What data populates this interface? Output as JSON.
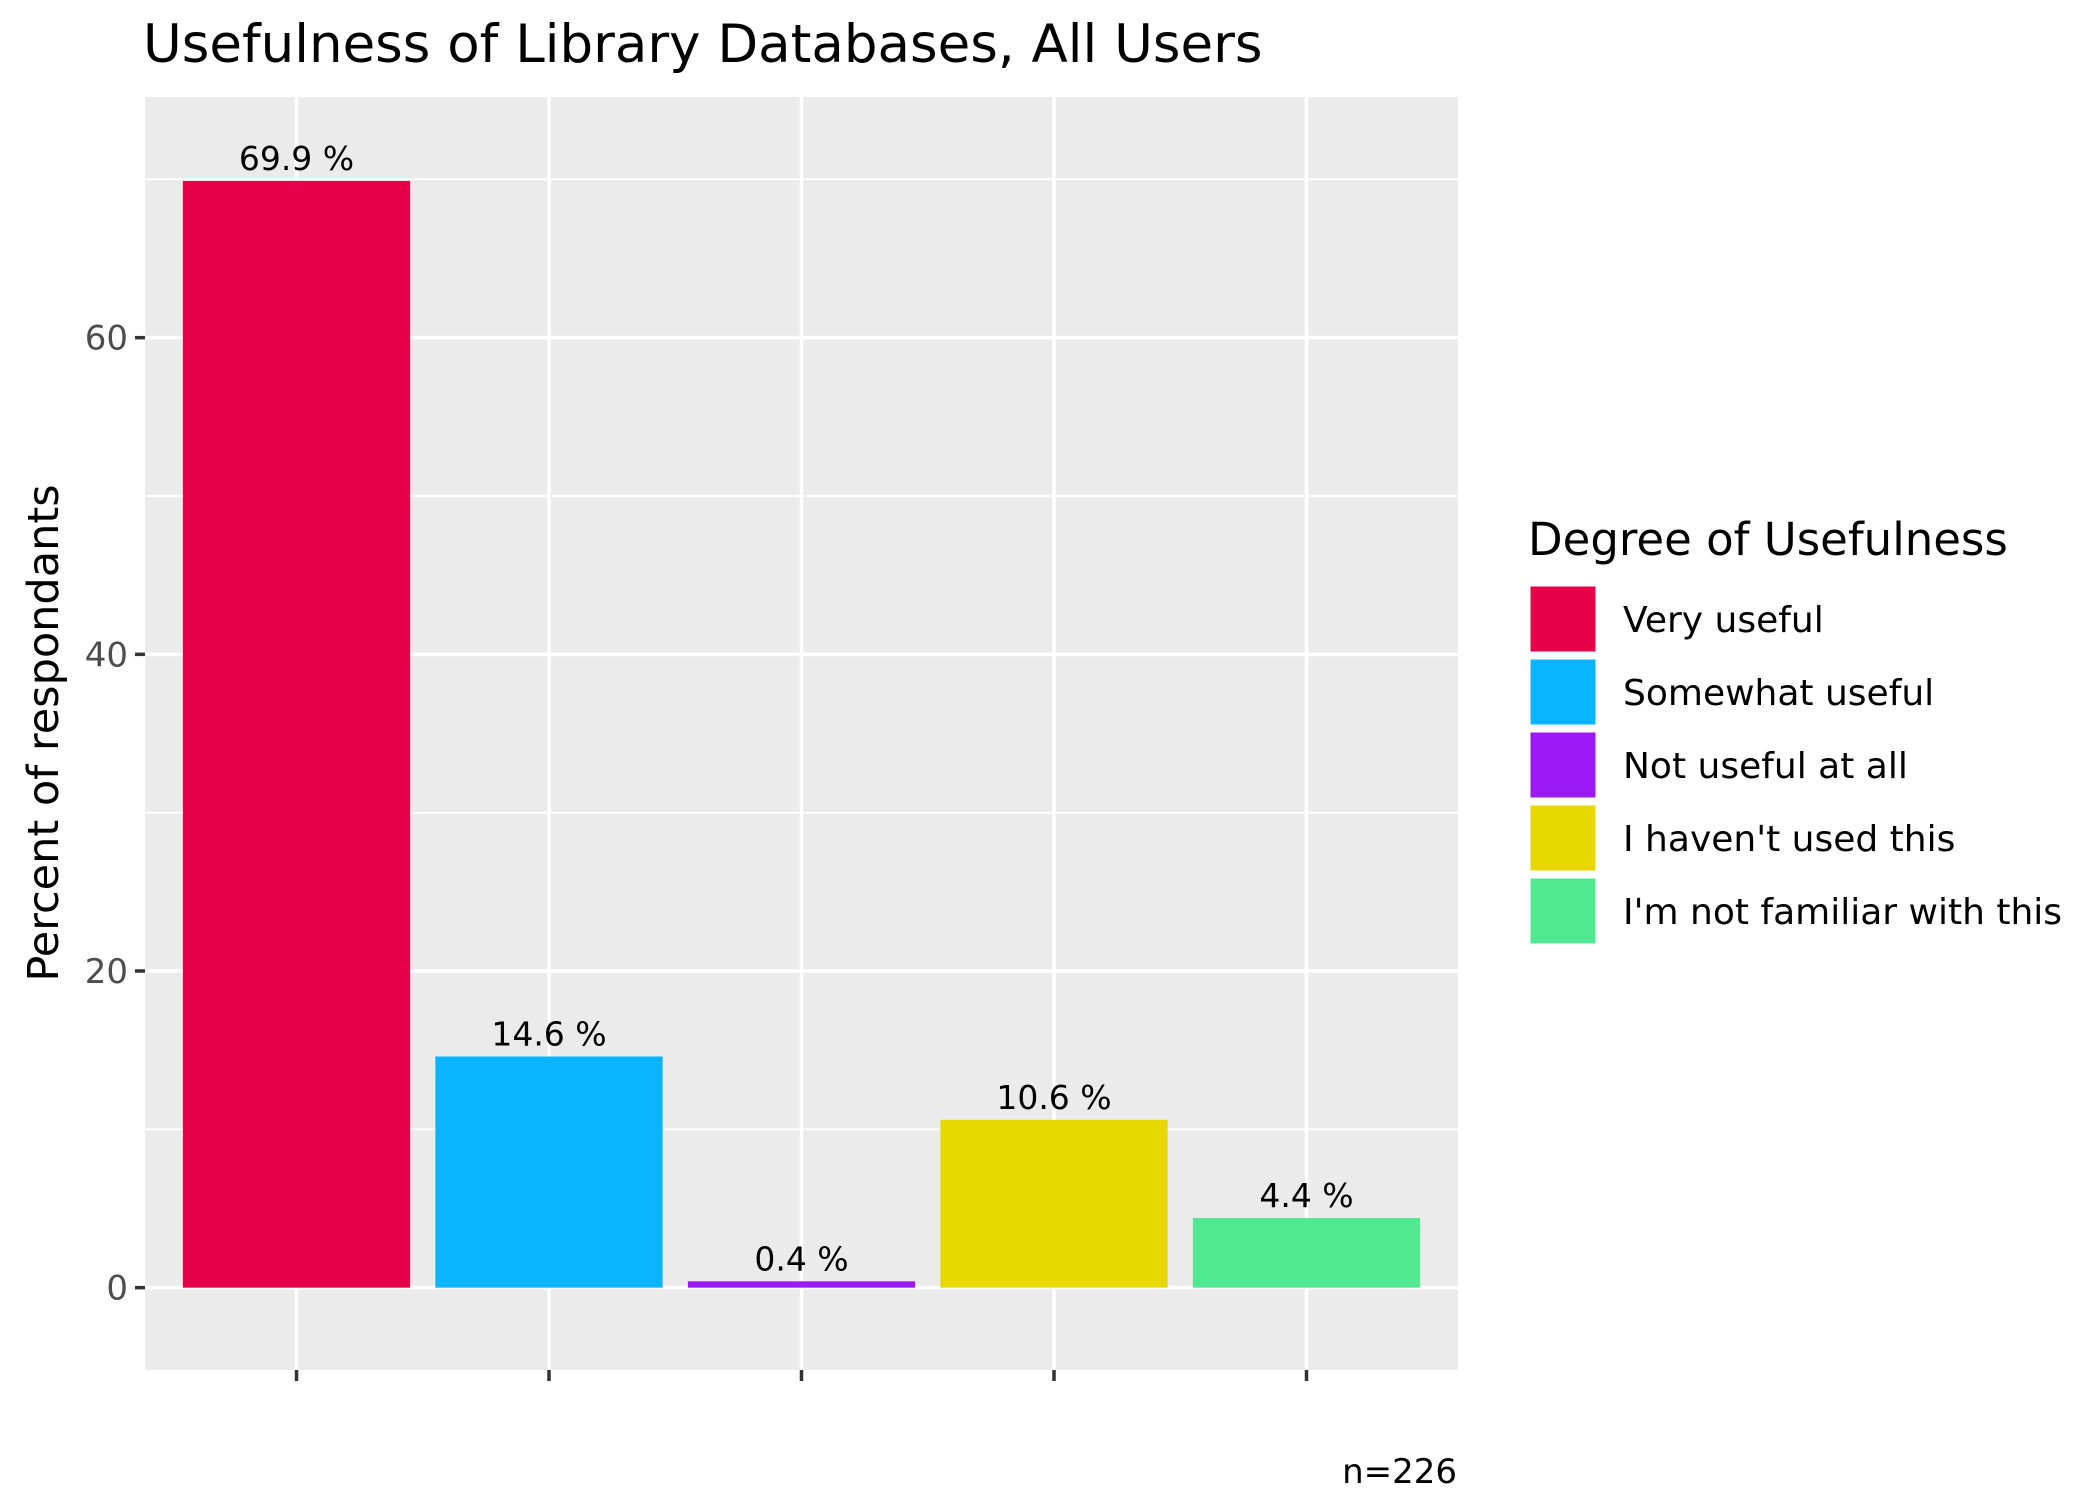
{
  "chart_data": {
    "type": "bar",
    "title": "Usefulness of Library Databases, All Users",
    "xlabel": "",
    "ylabel": "Percent of respondants",
    "caption": "n=226",
    "ylim": [
      -5.2,
      75.2
    ],
    "y_ticks": [
      0,
      20,
      40,
      60
    ],
    "y_tick_labels": [
      "0",
      "20",
      "40",
      "60"
    ],
    "grid": true,
    "legend_position": "right",
    "legend_title": "Degree of Usefulness",
    "categories": [
      "Very useful",
      "Somewhat useful",
      "Not useful at all",
      "I haven't used this",
      "I'm not familiar with this"
    ],
    "values": [
      69.9,
      14.6,
      0.4,
      10.6,
      4.4
    ],
    "data_labels": [
      "69.9 %",
      "14.6 %",
      "0.4 %",
      "10.6 %",
      "4.4 %"
    ],
    "colors": [
      "#E60049",
      "#0BB4FF",
      "#9B19F5",
      "#E6D800",
      "#50E991"
    ]
  }
}
